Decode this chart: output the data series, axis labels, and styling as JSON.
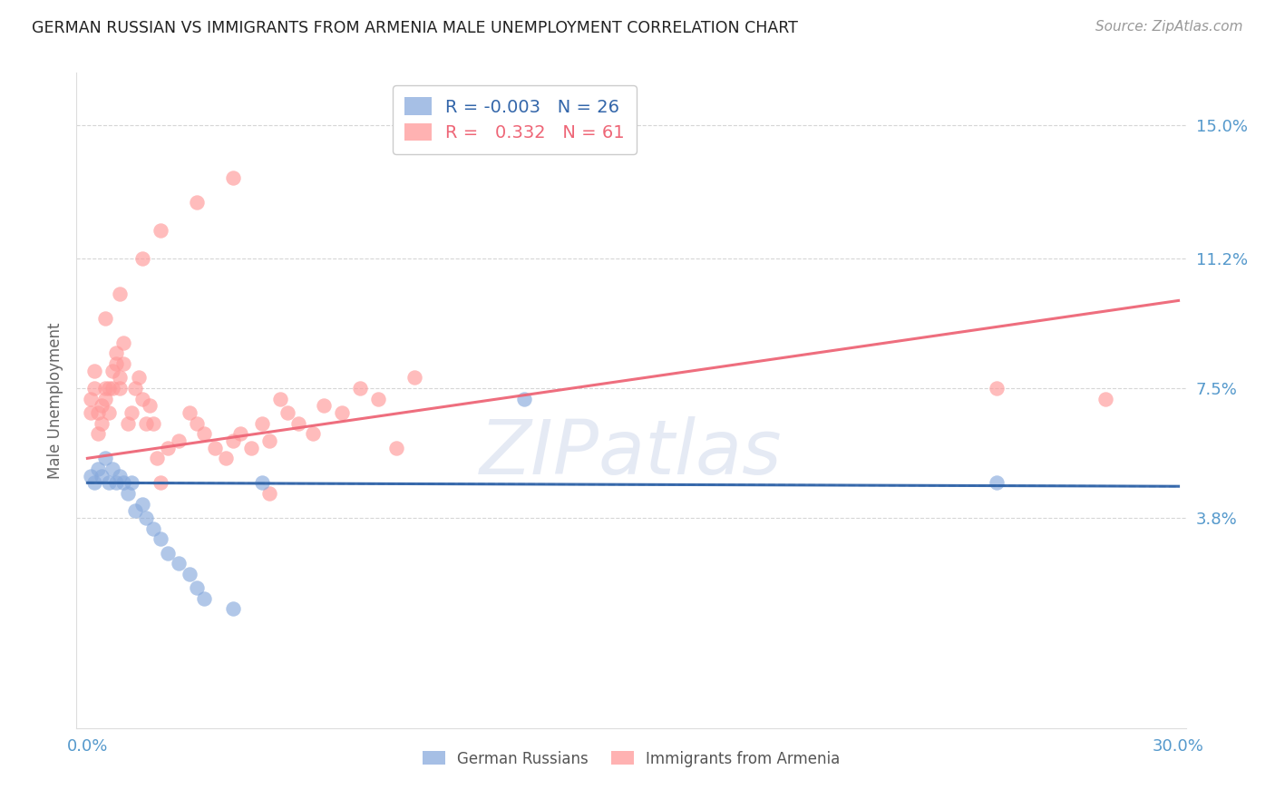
{
  "title": "GERMAN RUSSIAN VS IMMIGRANTS FROM ARMENIA MALE UNEMPLOYMENT CORRELATION CHART",
  "source": "Source: ZipAtlas.com",
  "ylabel": "Male Unemployment",
  "xlim": [
    0.0,
    0.3
  ],
  "ylim": [
    -0.022,
    0.165
  ],
  "yticks": [
    0.038,
    0.075,
    0.112,
    0.15
  ],
  "ytick_labels": [
    "3.8%",
    "7.5%",
    "11.2%",
    "15.0%"
  ],
  "watermark": "ZIPatlas",
  "legend_blue_R": "-0.003",
  "legend_blue_N": "26",
  "legend_pink_R": "0.332",
  "legend_pink_N": "61",
  "blue_color": "#88AADD",
  "pink_color": "#FF9999",
  "blue_line_color": "#3366AA",
  "pink_line_color": "#EE6677",
  "blue_scatter_x": [
    0.001,
    0.002,
    0.003,
    0.004,
    0.005,
    0.006,
    0.007,
    0.008,
    0.009,
    0.01,
    0.011,
    0.012,
    0.013,
    0.015,
    0.016,
    0.018,
    0.02,
    0.022,
    0.025,
    0.028,
    0.03,
    0.032,
    0.04,
    0.048,
    0.12,
    0.25
  ],
  "blue_scatter_y": [
    0.05,
    0.048,
    0.052,
    0.05,
    0.055,
    0.048,
    0.052,
    0.048,
    0.05,
    0.048,
    0.045,
    0.048,
    0.04,
    0.042,
    0.038,
    0.035,
    0.032,
    0.028,
    0.025,
    0.022,
    0.018,
    0.015,
    0.012,
    0.048,
    0.072,
    0.048
  ],
  "pink_scatter_x": [
    0.001,
    0.001,
    0.002,
    0.002,
    0.003,
    0.003,
    0.004,
    0.004,
    0.005,
    0.005,
    0.006,
    0.006,
    0.007,
    0.007,
    0.008,
    0.008,
    0.009,
    0.009,
    0.01,
    0.01,
    0.011,
    0.012,
    0.013,
    0.014,
    0.015,
    0.016,
    0.017,
    0.018,
    0.019,
    0.02,
    0.022,
    0.025,
    0.028,
    0.03,
    0.032,
    0.035,
    0.038,
    0.04,
    0.042,
    0.045,
    0.048,
    0.05,
    0.053,
    0.055,
    0.058,
    0.062,
    0.065,
    0.07,
    0.075,
    0.08,
    0.085,
    0.09,
    0.005,
    0.009,
    0.015,
    0.02,
    0.03,
    0.04,
    0.05,
    0.28,
    0.25
  ],
  "pink_scatter_y": [
    0.068,
    0.072,
    0.075,
    0.08,
    0.062,
    0.068,
    0.065,
    0.07,
    0.072,
    0.075,
    0.068,
    0.075,
    0.08,
    0.075,
    0.082,
    0.085,
    0.078,
    0.075,
    0.088,
    0.082,
    0.065,
    0.068,
    0.075,
    0.078,
    0.072,
    0.065,
    0.07,
    0.065,
    0.055,
    0.048,
    0.058,
    0.06,
    0.068,
    0.065,
    0.062,
    0.058,
    0.055,
    0.06,
    0.062,
    0.058,
    0.065,
    0.06,
    0.072,
    0.068,
    0.065,
    0.062,
    0.07,
    0.068,
    0.075,
    0.072,
    0.058,
    0.078,
    0.095,
    0.102,
    0.112,
    0.12,
    0.128,
    0.135,
    0.045,
    0.072,
    0.075
  ],
  "blue_trend_x": [
    0.0,
    0.3
  ],
  "blue_trend_y": [
    0.048,
    0.047
  ],
  "pink_trend_x": [
    0.0,
    0.3
  ],
  "pink_trend_y": [
    0.055,
    0.1
  ],
  "grid_color": "#CCCCCC",
  "background_color": "#FFFFFF",
  "tick_color": "#5599CC"
}
